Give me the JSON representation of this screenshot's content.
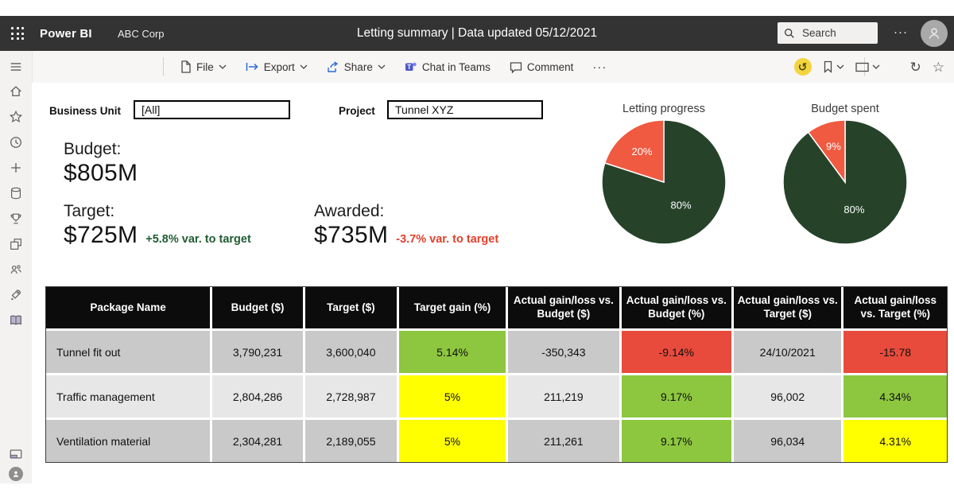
{
  "topbar": {
    "app": "Power BI",
    "org": "ABC Corp",
    "title": "Letting summary |  Data updated  05/12/2021",
    "search_placeholder": "Search",
    "more": "···"
  },
  "toolbar": {
    "file": "File",
    "export": "Export",
    "share": "Share",
    "teams": "Chat in Teams",
    "comment": "Comment",
    "more": "···",
    "reset_glyph": "↺",
    "refresh_glyph": "↻",
    "star_glyph": "☆"
  },
  "filters": {
    "business_unit_label": "Business Unit",
    "business_unit_value": "[All]",
    "project_label": "Project",
    "project_value": "Tunnel XYZ"
  },
  "kpis": {
    "budget_label": "Budget:",
    "budget_value": "$805M",
    "target_label": "Target:",
    "target_value": "$725M",
    "target_var": "+5.8% var. to target",
    "awarded_label": "Awarded:",
    "awarded_value": "$735M",
    "awarded_var": "-3.7% var. to target"
  },
  "chart_data": [
    {
      "type": "pie",
      "title": "Letting progress",
      "legend": "none",
      "slices": [
        {
          "label": "80%",
          "value": 80,
          "color": "#26432a"
        },
        {
          "label": "20%",
          "value": 20,
          "color": "#ef5a41"
        }
      ]
    },
    {
      "type": "pie",
      "title": "Budget spent",
      "legend": "none",
      "slices": [
        {
          "label": "80%",
          "value": 80,
          "color": "#26432a"
        },
        {
          "label": "9%",
          "value": 9,
          "color": "#ef5a41"
        }
      ]
    },
    {
      "type": "table",
      "columns": [
        "Package Name",
        "Budget ($)",
        "Target ($)",
        "Target gain (%)",
        "Actual gain/loss vs. Budget ($)",
        "Actual gain/loss vs. Budget (%)",
        "Actual gain/loss vs. Target ($)",
        "Actual gain/loss vs. Target (%)"
      ],
      "rows": [
        {
          "cells": [
            "Tunnel fit out",
            "3,790,231",
            "3,600,040",
            "5.14%",
            "-350,343",
            "-9.14%",
            "24/10/2021",
            "-15.78"
          ],
          "colors": [
            "",
            "",
            "",
            "green",
            "",
            "red",
            "",
            "red"
          ]
        },
        {
          "cells": [
            "Traffic management",
            "2,804,286",
            "2,728,987",
            "5%",
            "211,219",
            "9.17%",
            "96,002",
            "4.34%"
          ],
          "colors": [
            "",
            "",
            "",
            "yellow",
            "",
            "green",
            "",
            "green"
          ]
        },
        {
          "cells": [
            "Ventilation material",
            "2,304,281",
            "2,189,055",
            "5%",
            "211,261",
            "9.17%",
            "96,034",
            "4.31%"
          ],
          "colors": [
            "",
            "",
            "",
            "yellow",
            "",
            "green",
            "",
            "yellow"
          ]
        }
      ]
    }
  ],
  "colors": {
    "green": "#8dc63f",
    "yellow": "#ffff00",
    "red": "#e84b3c",
    "row_dark": "#c9c9c9",
    "row_light": "#e7e7e7",
    "pie_green": "#26432a",
    "pie_red": "#ef5a41",
    "var_positive": "#215c33",
    "var_negative": "#e3402d",
    "topbar_bg": "#333333"
  }
}
